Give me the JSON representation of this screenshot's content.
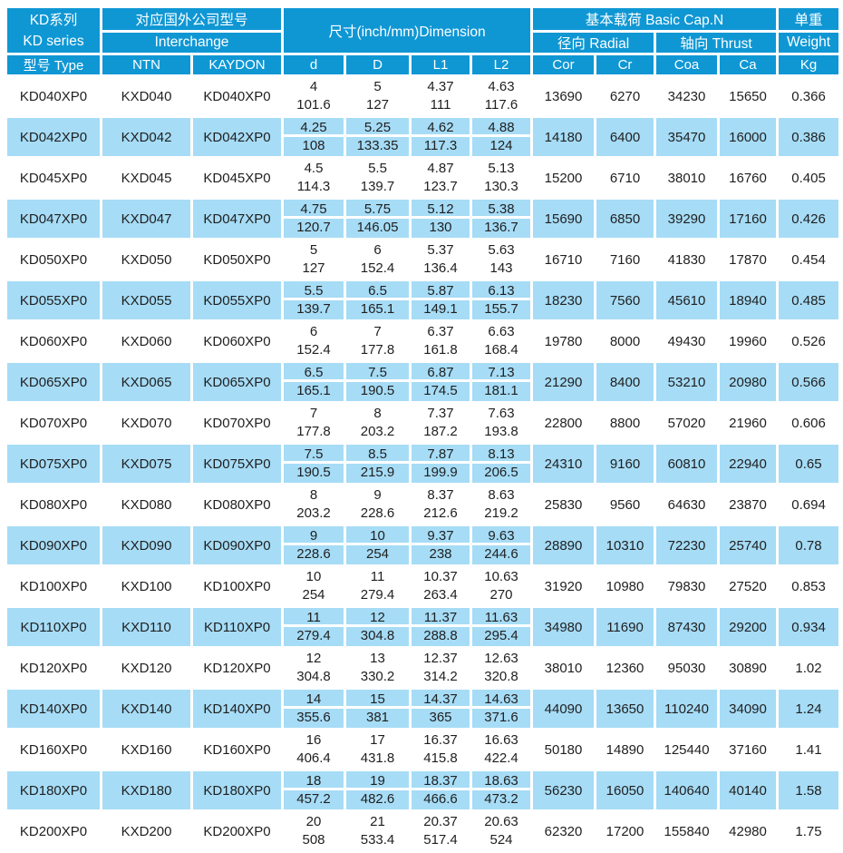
{
  "table": {
    "colors": {
      "header_bg": "#0f97d4",
      "stripe_bg": "#a6dcf6",
      "header_text": "#ffffff",
      "body_text": "#1f1f1f",
      "grid_line": "#ffffff"
    },
    "header": {
      "series_cn": "KD系列",
      "series_en": "KD series",
      "interchange_title": "对应国外公司型号",
      "interchange_subtitle": "Interchange",
      "dimension_title": "尺寸(inch/mm)Dimension",
      "capacity_title": "基本载荷 Basic Cap.N",
      "radial_label": "径向 Radial",
      "thrust_label": "轴向 Thrust",
      "weight_cn": "单重",
      "weight_en": "Weight",
      "columns": [
        "型号 Type",
        "NTN",
        "KAYDON",
        "d",
        "D",
        "L1",
        "L2",
        "Cor",
        "Cr",
        "Coa",
        "Ca",
        "Kg"
      ]
    },
    "rows": [
      {
        "model": "KD040XP0",
        "ntn": "KXD040",
        "kaydon": "KD040XP0",
        "dims": [
          [
            "4",
            "101.6"
          ],
          [
            "5",
            "127"
          ],
          [
            "4.37",
            "111"
          ],
          [
            "4.63",
            "117.6"
          ]
        ],
        "cor": "13690",
        "cr": "6270",
        "coa": "34230",
        "ca": "15650",
        "kg": "0.366"
      },
      {
        "model": "KD042XP0",
        "ntn": "KXD042",
        "kaydon": "KD042XP0",
        "dims": [
          [
            "4.25",
            "108"
          ],
          [
            "5.25",
            "133.35"
          ],
          [
            "4.62",
            "117.3"
          ],
          [
            "4.88",
            "124"
          ]
        ],
        "cor": "14180",
        "cr": "6400",
        "coa": "35470",
        "ca": "16000",
        "kg": "0.386"
      },
      {
        "model": "KD045XP0",
        "ntn": "KXD045",
        "kaydon": "KD045XP0",
        "dims": [
          [
            "4.5",
            "114.3"
          ],
          [
            "5.5",
            "139.7"
          ],
          [
            "4.87",
            "123.7"
          ],
          [
            "5.13",
            "130.3"
          ]
        ],
        "cor": "15200",
        "cr": "6710",
        "coa": "38010",
        "ca": "16760",
        "kg": "0.405"
      },
      {
        "model": "KD047XP0",
        "ntn": "KXD047",
        "kaydon": "KD047XP0",
        "dims": [
          [
            "4.75",
            "120.7"
          ],
          [
            "5.75",
            "146.05"
          ],
          [
            "5.12",
            "130"
          ],
          [
            "5.38",
            "136.7"
          ]
        ],
        "cor": "15690",
        "cr": "6850",
        "coa": "39290",
        "ca": "17160",
        "kg": "0.426"
      },
      {
        "model": "KD050XP0",
        "ntn": "KXD050",
        "kaydon": "KD050XP0",
        "dims": [
          [
            "5",
            "127"
          ],
          [
            "6",
            "152.4"
          ],
          [
            "5.37",
            "136.4"
          ],
          [
            "5.63",
            "143"
          ]
        ],
        "cor": "16710",
        "cr": "7160",
        "coa": "41830",
        "ca": "17870",
        "kg": "0.454"
      },
      {
        "model": "KD055XP0",
        "ntn": "KXD055",
        "kaydon": "KD055XP0",
        "dims": [
          [
            "5.5",
            "139.7"
          ],
          [
            "6.5",
            "165.1"
          ],
          [
            "5.87",
            "149.1"
          ],
          [
            "6.13",
            "155.7"
          ]
        ],
        "cor": "18230",
        "cr": "7560",
        "coa": "45610",
        "ca": "18940",
        "kg": "0.485"
      },
      {
        "model": "KD060XP0",
        "ntn": "KXD060",
        "kaydon": "KD060XP0",
        "dims": [
          [
            "6",
            "152.4"
          ],
          [
            "7",
            "177.8"
          ],
          [
            "6.37",
            "161.8"
          ],
          [
            "6.63",
            "168.4"
          ]
        ],
        "cor": "19780",
        "cr": "8000",
        "coa": "49430",
        "ca": "19960",
        "kg": "0.526"
      },
      {
        "model": "KD065XP0",
        "ntn": "KXD065",
        "kaydon": "KD065XP0",
        "dims": [
          [
            "6.5",
            "165.1"
          ],
          [
            "7.5",
            "190.5"
          ],
          [
            "6.87",
            "174.5"
          ],
          [
            "7.13",
            "181.1"
          ]
        ],
        "cor": "21290",
        "cr": "8400",
        "coa": "53210",
        "ca": "20980",
        "kg": "0.566"
      },
      {
        "model": "KD070XP0",
        "ntn": "KXD070",
        "kaydon": "KD070XP0",
        "dims": [
          [
            "7",
            "177.8"
          ],
          [
            "8",
            "203.2"
          ],
          [
            "7.37",
            "187.2"
          ],
          [
            "7.63",
            "193.8"
          ]
        ],
        "cor": "22800",
        "cr": "8800",
        "coa": "57020",
        "ca": "21960",
        "kg": "0.606"
      },
      {
        "model": "KD075XP0",
        "ntn": "KXD075",
        "kaydon": "KD075XP0",
        "dims": [
          [
            "7.5",
            "190.5"
          ],
          [
            "8.5",
            "215.9"
          ],
          [
            "7.87",
            "199.9"
          ],
          [
            "8.13",
            "206.5"
          ]
        ],
        "cor": "24310",
        "cr": "9160",
        "coa": "60810",
        "ca": "22940",
        "kg": "0.65"
      },
      {
        "model": "KD080XP0",
        "ntn": "KXD080",
        "kaydon": "KD080XP0",
        "dims": [
          [
            "8",
            "203.2"
          ],
          [
            "9",
            "228.6"
          ],
          [
            "8.37",
            "212.6"
          ],
          [
            "8.63",
            "219.2"
          ]
        ],
        "cor": "25830",
        "cr": "9560",
        "coa": "64630",
        "ca": "23870",
        "kg": "0.694"
      },
      {
        "model": "KD090XP0",
        "ntn": "KXD090",
        "kaydon": "KD090XP0",
        "dims": [
          [
            "9",
            "228.6"
          ],
          [
            "10",
            "254"
          ],
          [
            "9.37",
            "238"
          ],
          [
            "9.63",
            "244.6"
          ]
        ],
        "cor": "28890",
        "cr": "10310",
        "coa": "72230",
        "ca": "25740",
        "kg": "0.78"
      },
      {
        "model": "KD100XP0",
        "ntn": "KXD100",
        "kaydon": "KD100XP0",
        "dims": [
          [
            "10",
            "254"
          ],
          [
            "11",
            "279.4"
          ],
          [
            "10.37",
            "263.4"
          ],
          [
            "10.63",
            "270"
          ]
        ],
        "cor": "31920",
        "cr": "10980",
        "coa": "79830",
        "ca": "27520",
        "kg": "0.853"
      },
      {
        "model": "KD110XP0",
        "ntn": "KXD110",
        "kaydon": "KD110XP0",
        "dims": [
          [
            "11",
            "279.4"
          ],
          [
            "12",
            "304.8"
          ],
          [
            "11.37",
            "288.8"
          ],
          [
            "11.63",
            "295.4"
          ]
        ],
        "cor": "34980",
        "cr": "11690",
        "coa": "87430",
        "ca": "29200",
        "kg": "0.934"
      },
      {
        "model": "KD120XP0",
        "ntn": "KXD120",
        "kaydon": "KD120XP0",
        "dims": [
          [
            "12",
            "304.8"
          ],
          [
            "13",
            "330.2"
          ],
          [
            "12.37",
            "314.2"
          ],
          [
            "12.63",
            "320.8"
          ]
        ],
        "cor": "38010",
        "cr": "12360",
        "coa": "95030",
        "ca": "30890",
        "kg": "1.02"
      },
      {
        "model": "KD140XP0",
        "ntn": "KXD140",
        "kaydon": "KD140XP0",
        "dims": [
          [
            "14",
            "355.6"
          ],
          [
            "15",
            "381"
          ],
          [
            "14.37",
            "365"
          ],
          [
            "14.63",
            "371.6"
          ]
        ],
        "cor": "44090",
        "cr": "13650",
        "coa": "110240",
        "ca": "34090",
        "kg": "1.24"
      },
      {
        "model": "KD160XP0",
        "ntn": "KXD160",
        "kaydon": "KD160XP0",
        "dims": [
          [
            "16",
            "406.4"
          ],
          [
            "17",
            "431.8"
          ],
          [
            "16.37",
            "415.8"
          ],
          [
            "16.63",
            "422.4"
          ]
        ],
        "cor": "50180",
        "cr": "14890",
        "coa": "125440",
        "ca": "37160",
        "kg": "1.41"
      },
      {
        "model": "KD180XP0",
        "ntn": "KXD180",
        "kaydon": "KD180XP0",
        "dims": [
          [
            "18",
            "457.2"
          ],
          [
            "19",
            "482.6"
          ],
          [
            "18.37",
            "466.6"
          ],
          [
            "18.63",
            "473.2"
          ]
        ],
        "cor": "56230",
        "cr": "16050",
        "coa": "140640",
        "ca": "40140",
        "kg": "1.58"
      },
      {
        "model": "KD200XP0",
        "ntn": "KXD200",
        "kaydon": "KD200XP0",
        "dims": [
          [
            "20",
            "508"
          ],
          [
            "21",
            "533.4"
          ],
          [
            "20.37",
            "517.4"
          ],
          [
            "20.63",
            "524"
          ]
        ],
        "cor": "62320",
        "cr": "17200",
        "coa": "155840",
        "ca": "42980",
        "kg": "1.75"
      }
    ]
  }
}
